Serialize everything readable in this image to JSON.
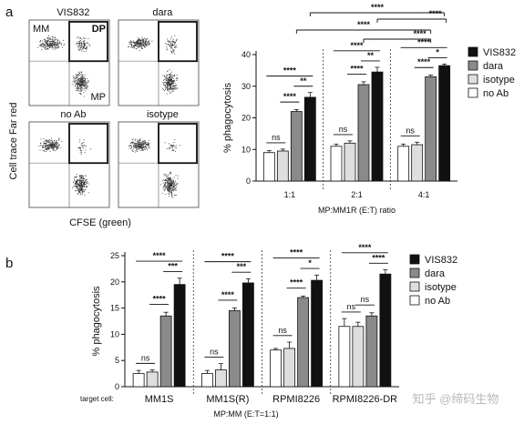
{
  "panel_labels": [
    "a",
    "b"
  ],
  "flow": {
    "y_label": "Cell trace Far red",
    "x_label": "CFSE (green)",
    "panels": [
      {
        "title": "VIS832",
        "gate_labels": [
          "MM",
          "DP",
          "MP"
        ]
      },
      {
        "title": "dara",
        "gate_labels": []
      },
      {
        "title": "no Ab",
        "gate_labels": []
      },
      {
        "title": "isotype",
        "gate_labels": []
      }
    ]
  },
  "legend": {
    "items": [
      {
        "label": "VIS832",
        "color": "#111111"
      },
      {
        "label": "dara",
        "color": "#8a8a8a"
      },
      {
        "label": "isotype",
        "color": "#dedede"
      },
      {
        "label": "no Ab",
        "color": "#ffffff"
      }
    ]
  },
  "chart_data": [
    {
      "type": "bar",
      "title": "",
      "ylabel": "% phagocytosis",
      "xlabel": "MP:MM1R (E:T) ratio",
      "categories": [
        "1:1",
        "2:1",
        "4:1"
      ],
      "ylim": [
        0,
        40
      ],
      "yticks": [
        0,
        10,
        20,
        30,
        40
      ],
      "series": [
        {
          "name": "no Ab",
          "values": [
            9,
            11,
            11
          ],
          "errors": [
            0.6,
            0.7,
            0.7
          ]
        },
        {
          "name": "isotype",
          "values": [
            9.5,
            12,
            11.5
          ],
          "errors": [
            0.6,
            0.7,
            0.8
          ]
        },
        {
          "name": "dara",
          "values": [
            22,
            30.5,
            33
          ],
          "errors": [
            0.6,
            0.9,
            0.5
          ]
        },
        {
          "name": "VIS832",
          "values": [
            26.5,
            34.5,
            36.5
          ],
          "errors": [
            1.5,
            1.5,
            0.5
          ]
        }
      ],
      "significance": [
        {
          "group": 0,
          "from": 0,
          "to": 1,
          "label": "ns"
        },
        {
          "group": 0,
          "from": 1,
          "to": 2,
          "label": "****"
        },
        {
          "group": 0,
          "from": 0,
          "to": 3,
          "label": "****"
        },
        {
          "group": 0,
          "from": 2,
          "to": 3,
          "label": "**"
        },
        {
          "group": 1,
          "from": 0,
          "to": 1,
          "label": "ns"
        },
        {
          "group": 1,
          "from": 1,
          "to": 2,
          "label": "****"
        },
        {
          "group": 1,
          "from": 0,
          "to": 3,
          "label": "****"
        },
        {
          "group": 1,
          "from": 2,
          "to": 3,
          "label": "**"
        },
        {
          "group": 2,
          "from": 0,
          "to": 1,
          "label": "ns"
        },
        {
          "group": 2,
          "from": 1,
          "to": 2,
          "label": "****"
        },
        {
          "group": 2,
          "from": 0,
          "to": 3,
          "label": "****"
        },
        {
          "group": 2,
          "from": 2,
          "to": 3,
          "label": "*"
        }
      ],
      "cross_group": [
        {
          "label": "****"
        },
        {
          "label": "****"
        },
        {
          "label": "****"
        },
        {
          "label": "****"
        }
      ]
    },
    {
      "type": "bar",
      "title": "",
      "ylabel": "% phagocytosis",
      "xlabel": "MP:MM (E:T=1:1)",
      "x_prefix": "target cell:",
      "categories": [
        "MM1S",
        "MM1S(R)",
        "RPMI8226",
        "RPMI8226-DR"
      ],
      "ylim": [
        0,
        25
      ],
      "yticks": [
        0,
        5,
        10,
        15,
        20,
        25
      ],
      "series": [
        {
          "name": "no Ab",
          "values": [
            2.5,
            2.5,
            7,
            11.5
          ],
          "errors": [
            0.6,
            0.6,
            0.3,
            1.5
          ]
        },
        {
          "name": "isotype",
          "values": [
            2.8,
            3.2,
            7.3,
            11.5
          ],
          "errors": [
            0.4,
            1.2,
            1.2,
            0.8
          ]
        },
        {
          "name": "dara",
          "values": [
            13.5,
            14.5,
            17,
            13.5
          ],
          "errors": [
            0.7,
            0.5,
            0.3,
            0.6
          ]
        },
        {
          "name": "VIS832",
          "values": [
            19.5,
            19.8,
            20.3,
            21.5
          ],
          "errors": [
            1.2,
            0.8,
            1.0,
            0.8
          ]
        }
      ],
      "significance": [
        {
          "group": 0,
          "from": 0,
          "to": 1,
          "label": "ns"
        },
        {
          "group": 0,
          "from": 1,
          "to": 2,
          "label": "****"
        },
        {
          "group": 0,
          "from": 0,
          "to": 3,
          "label": "****"
        },
        {
          "group": 0,
          "from": 2,
          "to": 3,
          "label": "***"
        },
        {
          "group": 1,
          "from": 0,
          "to": 1,
          "label": "ns"
        },
        {
          "group": 1,
          "from": 1,
          "to": 2,
          "label": "****"
        },
        {
          "group": 1,
          "from": 0,
          "to": 3,
          "label": "****"
        },
        {
          "group": 1,
          "from": 2,
          "to": 3,
          "label": "***"
        },
        {
          "group": 2,
          "from": 0,
          "to": 1,
          "label": "ns"
        },
        {
          "group": 2,
          "from": 1,
          "to": 2,
          "label": "****"
        },
        {
          "group": 2,
          "from": 0,
          "to": 3,
          "label": "****"
        },
        {
          "group": 2,
          "from": 2,
          "to": 3,
          "label": "*"
        },
        {
          "group": 3,
          "from": 0,
          "to": 1,
          "label": "ns"
        },
        {
          "group": 3,
          "from": 1,
          "to": 2,
          "label": "ns"
        },
        {
          "group": 3,
          "from": 0,
          "to": 3,
          "label": "****"
        },
        {
          "group": 3,
          "from": 2,
          "to": 3,
          "label": "****"
        }
      ]
    }
  ],
  "watermark": "知乎 @缔码生物"
}
